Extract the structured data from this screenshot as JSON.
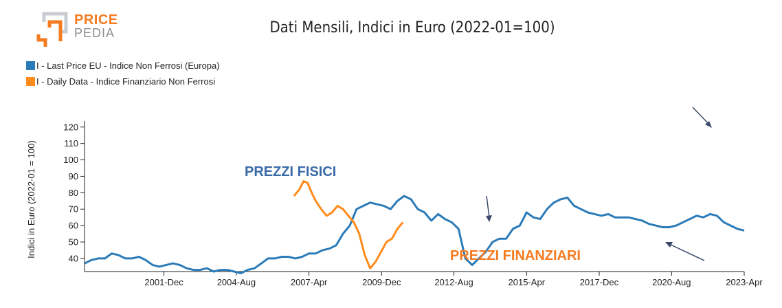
{
  "logo": {
    "line1": "PRICE",
    "line2": "PEDIA"
  },
  "colors": {
    "series1": "#2b7bb9",
    "series2": "#ff8c1a",
    "annot_blue": "#3a6aa8",
    "annot_orange": "#f47b20",
    "arrow": "#3b4a6b"
  },
  "chart_data": {
    "type": "line",
    "title": "Dati Mensili, Indici in Euro (2022-01=100)",
    "ylabel": "Indici in Euro (2022-01 = 100)",
    "xlabel": "",
    "ylim": [
      32,
      122
    ],
    "yticks": [
      40,
      50,
      60,
      70,
      80,
      90,
      100,
      110,
      120
    ],
    "xlim": [
      1999.0,
      2023.25
    ],
    "xticks": [
      {
        "x": 2001.92,
        "label": "2001-Dec"
      },
      {
        "x": 2004.58,
        "label": "2004-Aug"
      },
      {
        "x": 2007.25,
        "label": "2007-Apr"
      },
      {
        "x": 2009.92,
        "label": "2009-Dec"
      },
      {
        "x": 2012.58,
        "label": "2012-Aug"
      },
      {
        "x": 2015.25,
        "label": "2015-Apr"
      },
      {
        "x": 2017.92,
        "label": "2017-Dec"
      },
      {
        "x": 2020.58,
        "label": "2020-Aug"
      },
      {
        "x": 2023.25,
        "label": "2023-Apr"
      }
    ],
    "legend_position": "top-left",
    "grid": false,
    "series": [
      {
        "name": "I - Last Price EU - Indice Non Ferrosi (Europa)",
        "points": [
          [
            1999.0,
            37
          ],
          [
            1999.25,
            39
          ],
          [
            1999.5,
            40
          ],
          [
            1999.75,
            40
          ],
          [
            2000.0,
            43
          ],
          [
            2000.25,
            42
          ],
          [
            2000.5,
            40
          ],
          [
            2000.75,
            40
          ],
          [
            2001.0,
            41
          ],
          [
            2001.25,
            39
          ],
          [
            2001.5,
            36
          ],
          [
            2001.75,
            35
          ],
          [
            2002.0,
            36
          ],
          [
            2002.25,
            37
          ],
          [
            2002.5,
            36
          ],
          [
            2002.75,
            34
          ],
          [
            2003.0,
            33
          ],
          [
            2003.25,
            33
          ],
          [
            2003.5,
            34
          ],
          [
            2003.75,
            32
          ],
          [
            2004.0,
            33
          ],
          [
            2004.25,
            33
          ],
          [
            2004.5,
            32
          ],
          [
            2004.75,
            31
          ],
          [
            2005.0,
            33
          ],
          [
            2005.25,
            34
          ],
          [
            2005.5,
            37
          ],
          [
            2005.75,
            40
          ],
          [
            2006.0,
            40
          ],
          [
            2006.25,
            41
          ],
          [
            2006.5,
            41
          ],
          [
            2006.75,
            40
          ],
          [
            2007.0,
            41
          ],
          [
            2007.25,
            43
          ],
          [
            2007.5,
            43
          ],
          [
            2007.75,
            45
          ],
          [
            2008.0,
            46
          ],
          [
            2008.25,
            48
          ],
          [
            2008.5,
            55
          ],
          [
            2008.75,
            60
          ],
          [
            2009.0,
            70
          ],
          [
            2009.25,
            72
          ],
          [
            2009.5,
            74
          ],
          [
            2009.75,
            73
          ],
          [
            2010.0,
            72
          ],
          [
            2010.25,
            70
          ],
          [
            2010.5,
            75
          ],
          [
            2010.75,
            78
          ],
          [
            2011.0,
            76
          ],
          [
            2011.25,
            70
          ],
          [
            2011.5,
            68
          ],
          [
            2011.75,
            63
          ],
          [
            2012.0,
            67
          ],
          [
            2012.25,
            64
          ],
          [
            2012.5,
            62
          ],
          [
            2012.75,
            58
          ],
          [
            2013.0,
            40
          ],
          [
            2013.25,
            36
          ],
          [
            2013.5,
            40
          ],
          [
            2013.75,
            44
          ],
          [
            2014.0,
            50
          ],
          [
            2014.25,
            52
          ],
          [
            2014.5,
            52
          ],
          [
            2014.75,
            58
          ],
          [
            2015.0,
            60
          ],
          [
            2015.25,
            68
          ],
          [
            2015.5,
            65
          ],
          [
            2015.75,
            64
          ],
          [
            2016.0,
            70
          ],
          [
            2016.25,
            74
          ],
          [
            2016.5,
            76
          ],
          [
            2016.75,
            77
          ],
          [
            2017.0,
            72
          ],
          [
            2017.25,
            70
          ],
          [
            2017.5,
            68
          ],
          [
            2017.75,
            67
          ],
          [
            2018.0,
            66
          ],
          [
            2018.25,
            67
          ],
          [
            2018.5,
            65
          ],
          [
            2018.75,
            65
          ],
          [
            2019.0,
            65
          ],
          [
            2019.25,
            64
          ],
          [
            2019.5,
            63
          ],
          [
            2019.75,
            61
          ],
          [
            2020.0,
            60
          ],
          [
            2020.25,
            59
          ],
          [
            2020.5,
            59
          ],
          [
            2020.75,
            60
          ],
          [
            2021.0,
            62
          ],
          [
            2021.25,
            64
          ],
          [
            2021.5,
            66
          ],
          [
            2021.75,
            65
          ],
          [
            2022.0,
            67
          ],
          [
            2022.25,
            66
          ],
          [
            2022.5,
            62
          ],
          [
            2022.75,
            60
          ],
          [
            2023.0,
            58
          ],
          [
            2023.25,
            57
          ]
        ]
      },
      {
        "name": "I - Daily Data - Indice Finanziario Non Ferrosi",
        "points": [
          [
            2006.7,
            78
          ],
          [
            2006.9,
            82
          ],
          [
            2007.05,
            87
          ],
          [
            2007.2,
            86
          ],
          [
            2007.35,
            80
          ],
          [
            2007.5,
            75
          ],
          [
            2007.7,
            70
          ],
          [
            2007.9,
            66
          ],
          [
            2008.1,
            68
          ],
          [
            2008.3,
            72
          ],
          [
            2008.5,
            70
          ],
          [
            2008.7,
            66
          ],
          [
            2008.9,
            62
          ],
          [
            2009.1,
            55
          ],
          [
            2009.3,
            42
          ],
          [
            2009.5,
            34
          ],
          [
            2009.7,
            38
          ],
          [
            2009.9,
            44
          ],
          [
            2010.1,
            50
          ],
          [
            2010.3,
            52
          ],
          [
            2010.5,
            58
          ],
          [
            2010.7,
            62
          ]
        ]
      }
    ],
    "annotations": [
      {
        "text": "PREZZI FISICI",
        "color": "#3a6aa8"
      },
      {
        "text": "PREZZI FINANZIARI",
        "color": "#f47b20"
      }
    ]
  }
}
